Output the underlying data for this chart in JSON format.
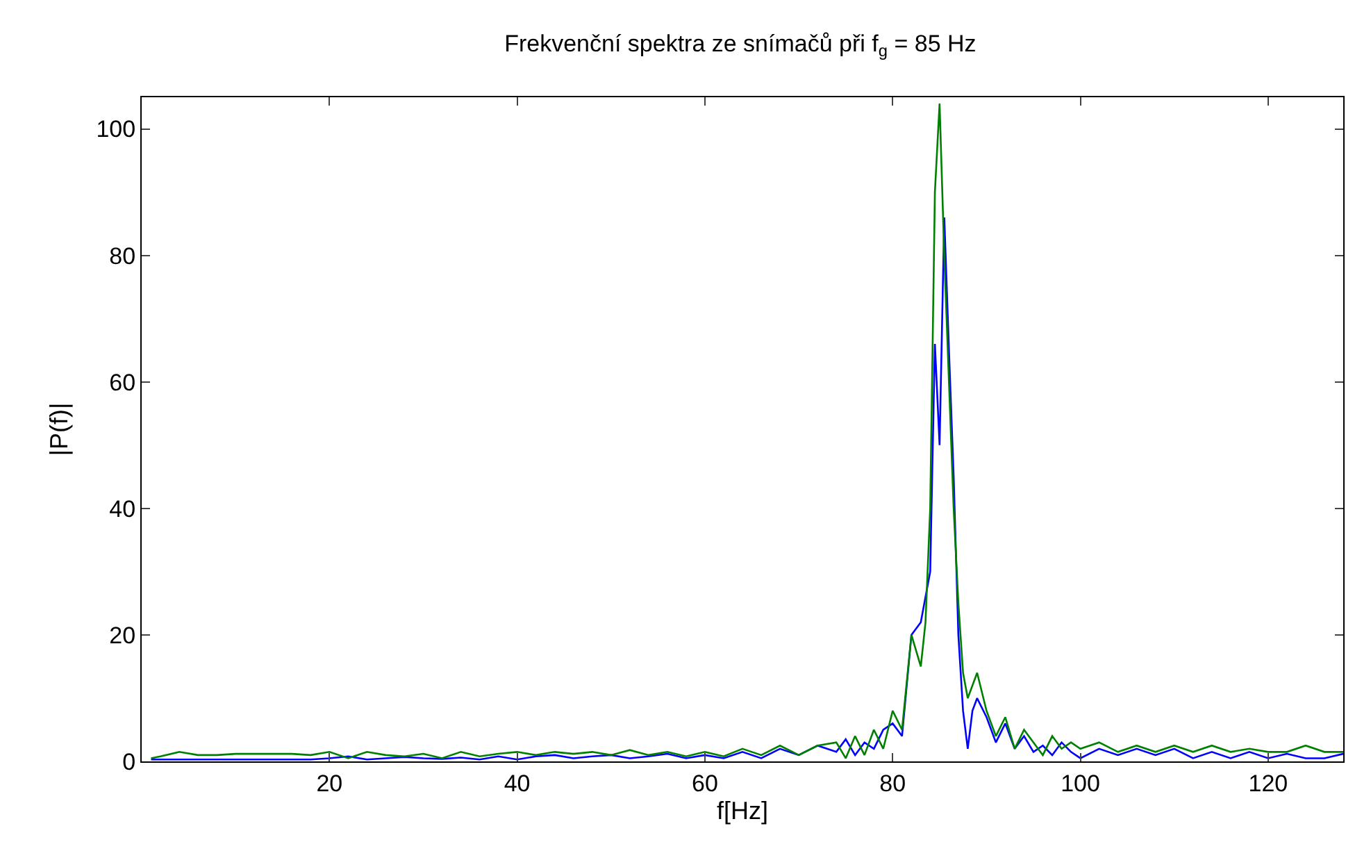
{
  "chart_data": {
    "type": "line",
    "title": "Frekvenční spektra ze snímačů při f$_{g}$ = 85 Hz",
    "xlabel": "f[Hz]",
    "ylabel": "|P(f)|",
    "xlim": [
      0,
      128
    ],
    "ylim": [
      0,
      105
    ],
    "xticks": [
      20,
      40,
      60,
      80,
      100,
      120
    ],
    "yticks": [
      0,
      20,
      40,
      60,
      80,
      100
    ],
    "series": [
      {
        "color": "#0000ff",
        "x": [
          1,
          2,
          4,
          6,
          8,
          10,
          12,
          14,
          16,
          18,
          20,
          22,
          24,
          26,
          28,
          30,
          32,
          34,
          36,
          38,
          40,
          42,
          44,
          46,
          48,
          50,
          52,
          54,
          56,
          58,
          60,
          62,
          64,
          66,
          68,
          70,
          72,
          74,
          75,
          76,
          77,
          78,
          79,
          80,
          81,
          82,
          83,
          84,
          84.5,
          85,
          85.5,
          86,
          86.5,
          87,
          87.5,
          88,
          88.5,
          89,
          90,
          91,
          92,
          93,
          94,
          95,
          96,
          97,
          98,
          99,
          100,
          102,
          104,
          106,
          108,
          110,
          112,
          114,
          116,
          118,
          120,
          122,
          124,
          126,
          128
        ],
        "values": [
          0.3,
          0.3,
          0.3,
          0.3,
          0.3,
          0.3,
          0.3,
          0.3,
          0.3,
          0.3,
          0.5,
          0.8,
          0.3,
          0.5,
          0.7,
          0.5,
          0.4,
          0.6,
          0.3,
          0.8,
          0.3,
          0.8,
          1.0,
          0.5,
          0.8,
          1.0,
          0.5,
          0.8,
          1.2,
          0.5,
          1.0,
          0.5,
          1.5,
          0.5,
          2.0,
          1.0,
          2.5,
          1.5,
          3.5,
          1.0,
          3.0,
          2.0,
          5.0,
          6.0,
          4.0,
          20,
          22,
          30,
          66,
          50,
          86,
          65,
          45,
          20,
          8,
          2,
          8,
          10,
          7,
          3,
          6,
          2,
          4,
          1.5,
          2.5,
          1,
          3,
          1.5,
          0.5,
          2,
          1,
          2,
          1,
          2,
          0.5,
          1.5,
          0.5,
          1.5,
          0.5,
          1.2,
          0.5,
          0.5,
          1.2
        ]
      },
      {
        "color": "#008000",
        "x": [
          1,
          2,
          4,
          6,
          8,
          10,
          12,
          14,
          16,
          18,
          20,
          22,
          24,
          26,
          28,
          30,
          32,
          34,
          36,
          38,
          40,
          42,
          44,
          46,
          48,
          50,
          52,
          54,
          56,
          58,
          60,
          62,
          64,
          66,
          68,
          70,
          72,
          74,
          75,
          76,
          77,
          78,
          79,
          80,
          81,
          82,
          83,
          83.5,
          84,
          84.5,
          85,
          85.5,
          86,
          86.5,
          87,
          87.5,
          88,
          89,
          90,
          91,
          92,
          93,
          94,
          95,
          96,
          97,
          98,
          99,
          100,
          102,
          104,
          106,
          108,
          110,
          112,
          114,
          116,
          118,
          120,
          122,
          124,
          126,
          128
        ],
        "values": [
          0.5,
          0.8,
          1.5,
          1.0,
          1.0,
          1.2,
          1.2,
          1.2,
          1.2,
          1.0,
          1.5,
          0.5,
          1.5,
          1.0,
          0.8,
          1.2,
          0.5,
          1.5,
          0.8,
          1.2,
          1.5,
          1.0,
          1.5,
          1.2,
          1.5,
          1.0,
          1.8,
          1.0,
          1.5,
          0.8,
          1.5,
          0.8,
          2.0,
          1.0,
          2.5,
          1.0,
          2.5,
          3.0,
          0.5,
          4.0,
          1.0,
          5.0,
          2.0,
          8.0,
          5.0,
          20,
          15,
          22,
          40,
          90,
          104,
          80,
          60,
          40,
          25,
          14,
          10,
          14,
          8,
          4,
          7,
          2,
          5,
          3,
          1,
          4,
          2,
          3,
          2,
          3,
          1.5,
          2.5,
          1.5,
          2.5,
          1.5,
          2.5,
          1.5,
          2,
          1.5,
          1.5,
          2.5,
          1.5,
          1.5
        ]
      }
    ]
  }
}
